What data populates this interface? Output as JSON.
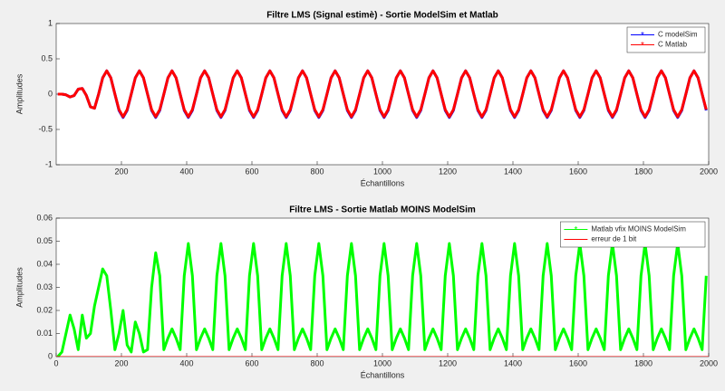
{
  "chart_data": [
    {
      "type": "line",
      "title": "Filtre LMS (Signal estimè) - Sortie ModelSim et Matlab",
      "x_label": "Échantillons",
      "y_label": "Amplitudes",
      "xlim": [
        0,
        2000
      ],
      "xticks": [
        200,
        400,
        600,
        800,
        1000,
        1200,
        1400,
        1600,
        1800,
        2000
      ],
      "ylim": [
        -1,
        1
      ],
      "yticks": [
        -1,
        -0.5,
        0,
        0.5,
        1
      ],
      "legend": "upper right",
      "x": [
        5,
        17.5,
        30,
        42.5,
        55,
        67.5,
        80,
        92.5,
        105,
        117.5,
        130,
        142.5,
        155,
        167.5,
        180,
        192.5,
        205,
        217.5,
        230,
        242.5,
        255,
        267.5,
        280,
        292.5,
        305,
        317.5,
        330,
        342.5,
        355,
        367.5,
        380,
        392.5,
        405,
        417.5,
        430,
        442.5,
        455,
        467.5,
        480,
        492.5,
        505,
        517.5,
        530,
        542.5,
        555,
        567.5,
        580,
        592.5,
        605,
        617.5,
        630,
        642.5,
        655,
        667.5,
        680,
        692.5,
        705,
        717.5,
        730,
        742.5,
        755,
        767.5,
        780,
        792.5,
        805,
        817.5,
        830,
        842.5,
        855,
        867.5,
        880,
        892.5,
        905,
        917.5,
        930,
        942.5,
        955,
        967.5,
        980,
        992.5,
        1005,
        1017.5,
        1030,
        1042.5,
        1055,
        1067.5,
        1080,
        1092.5,
        1105,
        1117.5,
        1130,
        1142.5,
        1155,
        1167.5,
        1180,
        1192.5,
        1205,
        1217.5,
        1230,
        1242.5,
        1255,
        1267.5,
        1280,
        1292.5,
        1305,
        1317.5,
        1330,
        1342.5,
        1355,
        1367.5,
        1380,
        1392.5,
        1405,
        1417.5,
        1430,
        1442.5,
        1455,
        1467.5,
        1480,
        1492.5,
        1505,
        1517.5,
        1530,
        1542.5,
        1555,
        1567.5,
        1580,
        1592.5,
        1605,
        1617.5,
        1630,
        1642.5,
        1655,
        1667.5,
        1680,
        1692.5,
        1705,
        1717.5,
        1730,
        1742.5,
        1755,
        1767.5,
        1780,
        1792.5,
        1805,
        1817.5,
        1830,
        1842.5,
        1855,
        1867.5,
        1880,
        1892.5,
        1905,
        1917.5,
        1930,
        1942.5,
        1955,
        1967.5,
        1980,
        1992.5
      ],
      "series": [
        {
          "name": "C modelSim",
          "color": "#0000ff",
          "values": [
            0,
            0,
            -0.01,
            -0.04,
            -0.02,
            0.07,
            0.08,
            -0.02,
            -0.18,
            -0.2,
            0,
            0.23,
            0.33,
            0.23,
            0,
            -0.23,
            -0.33,
            -0.23,
            0,
            0.23,
            0.33,
            0.23,
            0,
            -0.23,
            -0.33,
            -0.23,
            0,
            0.23,
            0.33,
            0.23,
            0,
            -0.23,
            -0.33,
            -0.23,
            0,
            0.23,
            0.33,
            0.23,
            0,
            -0.23,
            -0.33,
            -0.23,
            0,
            0.23,
            0.33,
            0.23,
            0,
            -0.23,
            -0.33,
            -0.23,
            0,
            0.23,
            0.33,
            0.23,
            0,
            -0.23,
            -0.33,
            -0.23,
            0,
            0.23,
            0.33,
            0.23,
            0,
            -0.23,
            -0.33,
            -0.23,
            0,
            0.23,
            0.33,
            0.23,
            0,
            -0.23,
            -0.33,
            -0.23,
            0,
            0.23,
            0.33,
            0.23,
            0,
            -0.23,
            -0.33,
            -0.23,
            0,
            0.23,
            0.33,
            0.23,
            0,
            -0.23,
            -0.33,
            -0.23,
            0,
            0.23,
            0.33,
            0.23,
            0,
            -0.23,
            -0.33,
            -0.23,
            0,
            0.23,
            0.33,
            0.23,
            0,
            -0.23,
            -0.33,
            -0.23,
            0,
            0.23,
            0.33,
            0.23,
            0,
            -0.23,
            -0.33,
            -0.23,
            0,
            0.23,
            0.33,
            0.23,
            0,
            -0.23,
            -0.33,
            -0.23,
            0,
            0.23,
            0.33,
            0.23,
            0,
            -0.23,
            -0.33,
            -0.23,
            0,
            0.23,
            0.33,
            0.23,
            0,
            -0.23,
            -0.33,
            -0.23,
            0,
            0.23,
            0.33,
            0.23,
            0,
            -0.23,
            -0.33,
            -0.23,
            0,
            0.23,
            0.33,
            0.23,
            0,
            -0.23,
            -0.33,
            -0.23,
            0,
            0.23,
            0.33,
            0.23,
            0,
            -0.23
          ]
        },
        {
          "name": "C Matlab",
          "color": "#ff0000",
          "values": [
            0,
            0,
            -0.01,
            -0.04,
            -0.02,
            0.07,
            0.08,
            -0.02,
            -0.18,
            -0.2,
            0,
            0.23,
            0.33,
            0.23,
            0,
            -0.22,
            -0.32,
            -0.22,
            0,
            0.23,
            0.33,
            0.23,
            0,
            -0.22,
            -0.32,
            -0.22,
            0,
            0.23,
            0.33,
            0.23,
            0,
            -0.22,
            -0.32,
            -0.22,
            0,
            0.23,
            0.33,
            0.23,
            0,
            -0.22,
            -0.32,
            -0.22,
            0,
            0.23,
            0.33,
            0.23,
            0,
            -0.22,
            -0.32,
            -0.22,
            0,
            0.23,
            0.33,
            0.23,
            0,
            -0.22,
            -0.32,
            -0.22,
            0,
            0.23,
            0.33,
            0.23,
            0,
            -0.22,
            -0.32,
            -0.22,
            0,
            0.23,
            0.33,
            0.23,
            0,
            -0.22,
            -0.32,
            -0.22,
            0,
            0.23,
            0.33,
            0.23,
            0,
            -0.22,
            -0.32,
            -0.22,
            0,
            0.23,
            0.33,
            0.23,
            0,
            -0.22,
            -0.32,
            -0.22,
            0,
            0.23,
            0.33,
            0.23,
            0,
            -0.22,
            -0.32,
            -0.22,
            0,
            0.23,
            0.33,
            0.23,
            0,
            -0.22,
            -0.32,
            -0.22,
            0,
            0.23,
            0.33,
            0.23,
            0,
            -0.22,
            -0.32,
            -0.22,
            0,
            0.23,
            0.33,
            0.23,
            0,
            -0.22,
            -0.32,
            -0.22,
            0,
            0.23,
            0.33,
            0.23,
            0,
            -0.22,
            -0.32,
            -0.22,
            0,
            0.23,
            0.33,
            0.23,
            0,
            -0.22,
            -0.32,
            -0.22,
            0,
            0.23,
            0.33,
            0.23,
            0,
            -0.22,
            -0.32,
            -0.22,
            0,
            0.23,
            0.33,
            0.23,
            0,
            -0.22,
            -0.32,
            -0.22,
            0,
            0.23,
            0.33,
            0.23,
            0,
            -0.22
          ]
        }
      ]
    },
    {
      "type": "line",
      "title": "Filtre LMS - Sortie Matlab MOINS ModelSim",
      "x_label": "Échantillons",
      "y_label": "Amplitudes",
      "xlim": [
        0,
        2000
      ],
      "xticks": [
        0,
        200,
        400,
        600,
        800,
        1000,
        1200,
        1400,
        1600,
        1800,
        2000
      ],
      "ylim": [
        0,
        0.06
      ],
      "yticks": [
        0,
        0.01,
        0.02,
        0.03,
        0.04,
        0.05,
        0.06
      ],
      "legend": "upper right",
      "x": [
        5,
        17.5,
        30,
        42.5,
        55,
        67.5,
        80,
        92.5,
        105,
        117.5,
        130,
        142.5,
        155,
        167.5,
        180,
        192.5,
        205,
        217.5,
        230,
        242.5,
        255,
        267.5,
        280,
        292.5,
        305,
        317.5,
        330,
        342.5,
        355,
        367.5,
        380,
        392.5,
        405,
        417.5,
        430,
        442.5,
        455,
        467.5,
        480,
        492.5,
        505,
        517.5,
        530,
        542.5,
        555,
        567.5,
        580,
        592.5,
        605,
        617.5,
        630,
        642.5,
        655,
        667.5,
        680,
        692.5,
        705,
        717.5,
        730,
        742.5,
        755,
        767.5,
        780,
        792.5,
        805,
        817.5,
        830,
        842.5,
        855,
        867.5,
        880,
        892.5,
        905,
        917.5,
        930,
        942.5,
        955,
        967.5,
        980,
        992.5,
        1005,
        1017.5,
        1030,
        1042.5,
        1055,
        1067.5,
        1080,
        1092.5,
        1105,
        1117.5,
        1130,
        1142.5,
        1155,
        1167.5,
        1180,
        1192.5,
        1205,
        1217.5,
        1230,
        1242.5,
        1255,
        1267.5,
        1280,
        1292.5,
        1305,
        1317.5,
        1330,
        1342.5,
        1355,
        1367.5,
        1380,
        1392.5,
        1405,
        1417.5,
        1430,
        1442.5,
        1455,
        1467.5,
        1480,
        1492.5,
        1505,
        1517.5,
        1530,
        1542.5,
        1555,
        1567.5,
        1580,
        1592.5,
        1605,
        1617.5,
        1630,
        1642.5,
        1655,
        1667.5,
        1680,
        1692.5,
        1705,
        1717.5,
        1730,
        1742.5,
        1755,
        1767.5,
        1780,
        1792.5,
        1805,
        1817.5,
        1830,
        1842.5,
        1855,
        1867.5,
        1880,
        1892.5,
        1905,
        1917.5,
        1930,
        1942.5,
        1955,
        1967.5,
        1980,
        1992.5
      ],
      "series": [
        {
          "name": "Matlab vfix MOINS ModelSim",
          "color": "#00ff00",
          "values": [
            0,
            0.002,
            0.01,
            0.018,
            0.012,
            0.003,
            0.018,
            0.008,
            0.01,
            0.022,
            0.03,
            0.038,
            0.035,
            0.02,
            0.003,
            0.01,
            0.02,
            0.005,
            0.002,
            0.015,
            0.01,
            0.002,
            0.003,
            0.03,
            0.045,
            0.035,
            0.003,
            0.008,
            0.012,
            0.008,
            0.003,
            0.035,
            0.049,
            0.035,
            0.003,
            0.008,
            0.012,
            0.008,
            0.003,
            0.035,
            0.049,
            0.035,
            0.003,
            0.008,
            0.012,
            0.008,
            0.003,
            0.035,
            0.049,
            0.035,
            0.003,
            0.008,
            0.012,
            0.008,
            0.003,
            0.035,
            0.049,
            0.035,
            0.003,
            0.008,
            0.012,
            0.008,
            0.003,
            0.035,
            0.049,
            0.035,
            0.003,
            0.008,
            0.012,
            0.008,
            0.003,
            0.035,
            0.049,
            0.035,
            0.003,
            0.008,
            0.012,
            0.008,
            0.003,
            0.035,
            0.049,
            0.035,
            0.003,
            0.008,
            0.012,
            0.008,
            0.003,
            0.035,
            0.049,
            0.035,
            0.003,
            0.008,
            0.012,
            0.008,
            0.003,
            0.035,
            0.049,
            0.035,
            0.003,
            0.008,
            0.012,
            0.008,
            0.003,
            0.035,
            0.049,
            0.035,
            0.003,
            0.008,
            0.012,
            0.008,
            0.003,
            0.035,
            0.049,
            0.035,
            0.003,
            0.008,
            0.012,
            0.008,
            0.003,
            0.035,
            0.049,
            0.035,
            0.003,
            0.008,
            0.012,
            0.008,
            0.003,
            0.035,
            0.049,
            0.035,
            0.003,
            0.008,
            0.012,
            0.008,
            0.003,
            0.035,
            0.049,
            0.035,
            0.003,
            0.008,
            0.012,
            0.008,
            0.003,
            0.035,
            0.049,
            0.035,
            0.003,
            0.008,
            0.012,
            0.008,
            0.003,
            0.035,
            0.049,
            0.035,
            0.003,
            0.008,
            0.012,
            0.008,
            0.003,
            0.035
          ]
        },
        {
          "name": "erreur de 1 bit",
          "color": "#ff0000",
          "x": [
            0,
            2000
          ],
          "values": [
            0,
            0
          ]
        }
      ]
    }
  ]
}
